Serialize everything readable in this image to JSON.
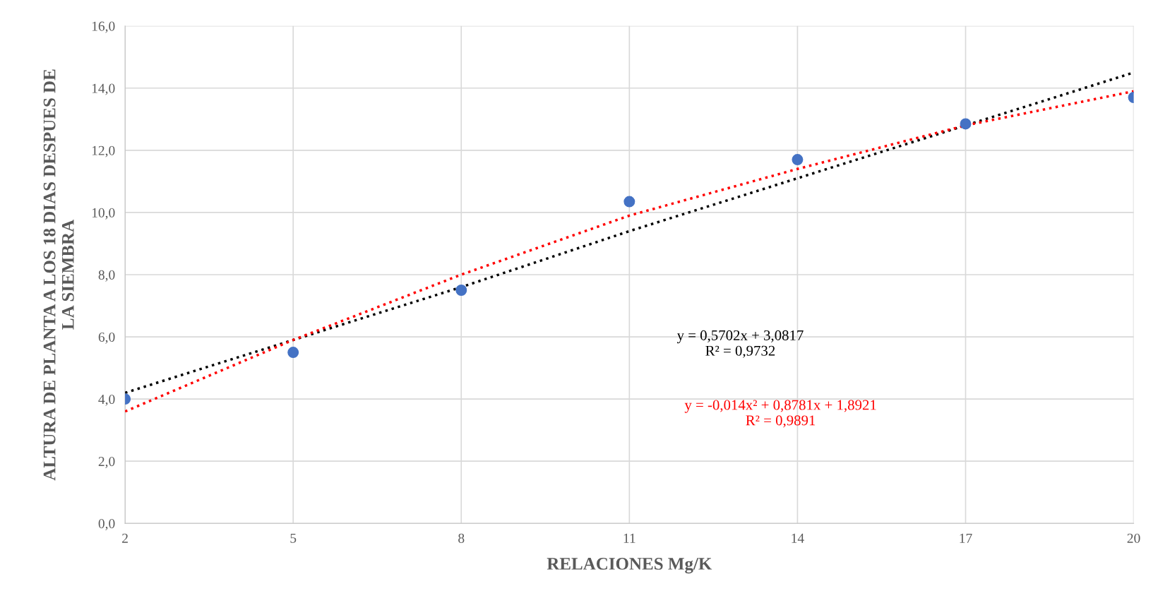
{
  "chart_data": {
    "type": "scatter",
    "xlabel": "RELACIONES Mg/K",
    "ylabel": "ALTURA DE PLANTA A LOS 18 DIAS DESPUES DE\nLA SIEMBRA",
    "x": [
      2,
      5,
      8,
      11,
      14,
      17,
      20
    ],
    "series": [
      {
        "values": [
          4.0,
          5.5,
          7.5,
          10.35,
          11.7,
          12.85,
          13.7
        ],
        "color": "#4472c4",
        "marker": "circle"
      },
      {
        "type": "line",
        "name": "y = 0,5702x + 3,0817\nR² = 0,9732",
        "color": "#000000",
        "line_style": "dotted",
        "x": [
          2,
          5,
          8,
          11,
          14,
          17,
          20
        ],
        "values": [
          4.2,
          5.9,
          7.6,
          9.4,
          11.1,
          12.8,
          14.5
        ]
      },
      {
        "type": "line",
        "name": "y = -0,014x² + 0,8781x + 1,8921\nR² = 0,9891",
        "color": "#ff0000",
        "line_style": "dotted",
        "x": [
          2,
          5,
          8,
          11,
          14,
          17,
          20
        ],
        "values": [
          3.6,
          5.9,
          8.0,
          9.9,
          11.4,
          12.8,
          13.9
        ]
      }
    ],
    "xlim": [
      2,
      20
    ],
    "xticks": [
      2,
      5,
      8,
      11,
      14,
      17,
      20
    ],
    "ylim": [
      0,
      16
    ],
    "yticks": [
      {
        "value": 0,
        "label": "0,0"
      },
      {
        "value": 2,
        "label": "2,0"
      },
      {
        "value": 4,
        "label": "4,0"
      },
      {
        "value": 6,
        "label": "6,0"
      },
      {
        "value": 8,
        "label": "8,0"
      },
      {
        "value": 10,
        "label": "10,0"
      },
      {
        "value": 12,
        "label": "12,0"
      },
      {
        "value": 14,
        "label": "14,0"
      },
      {
        "value": 16,
        "label": "16,0"
      }
    ],
    "grid": true,
    "legend": false
  }
}
